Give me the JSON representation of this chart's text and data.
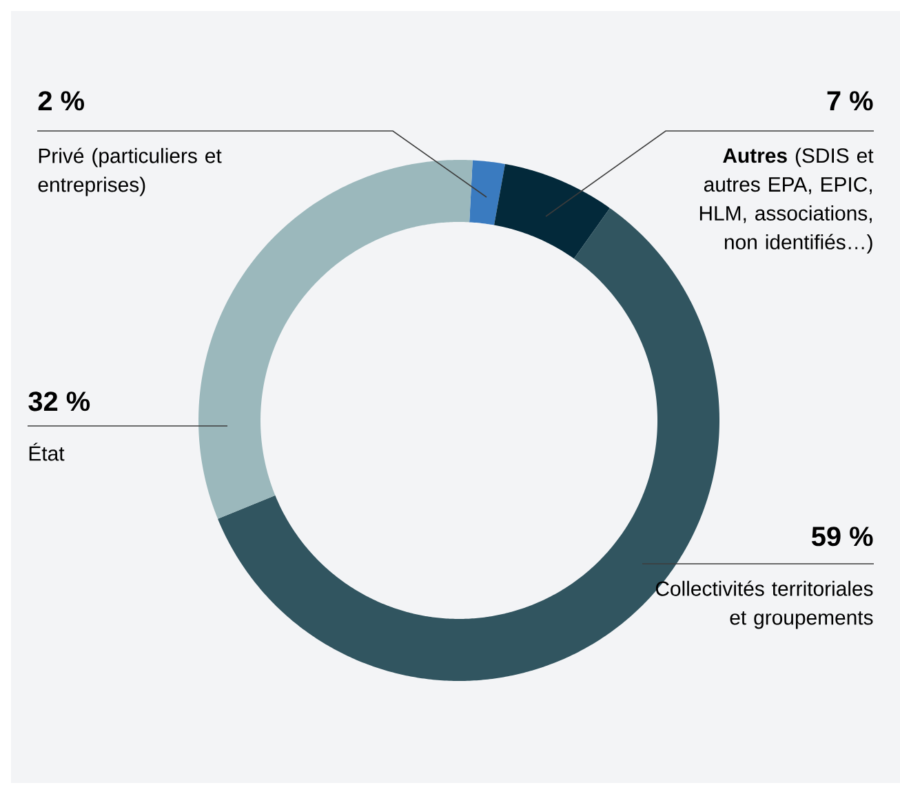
{
  "chart_data": {
    "type": "donut",
    "categories": [
      "Privé (particuliers et entreprises)",
      "**Autres** (SDIS et autres EPA, EPIC, HLM, associations, non identifiés…)",
      "Collectivités territoriales et groupements",
      "État"
    ],
    "values": [
      2,
      7,
      59,
      32
    ],
    "colors": [
      "#3a7bc0",
      "#03293a",
      "#315560",
      "#9bb8bc"
    ],
    "value_labels": [
      "2 %",
      "7 %",
      "59 %",
      "32 %"
    ]
  }
}
